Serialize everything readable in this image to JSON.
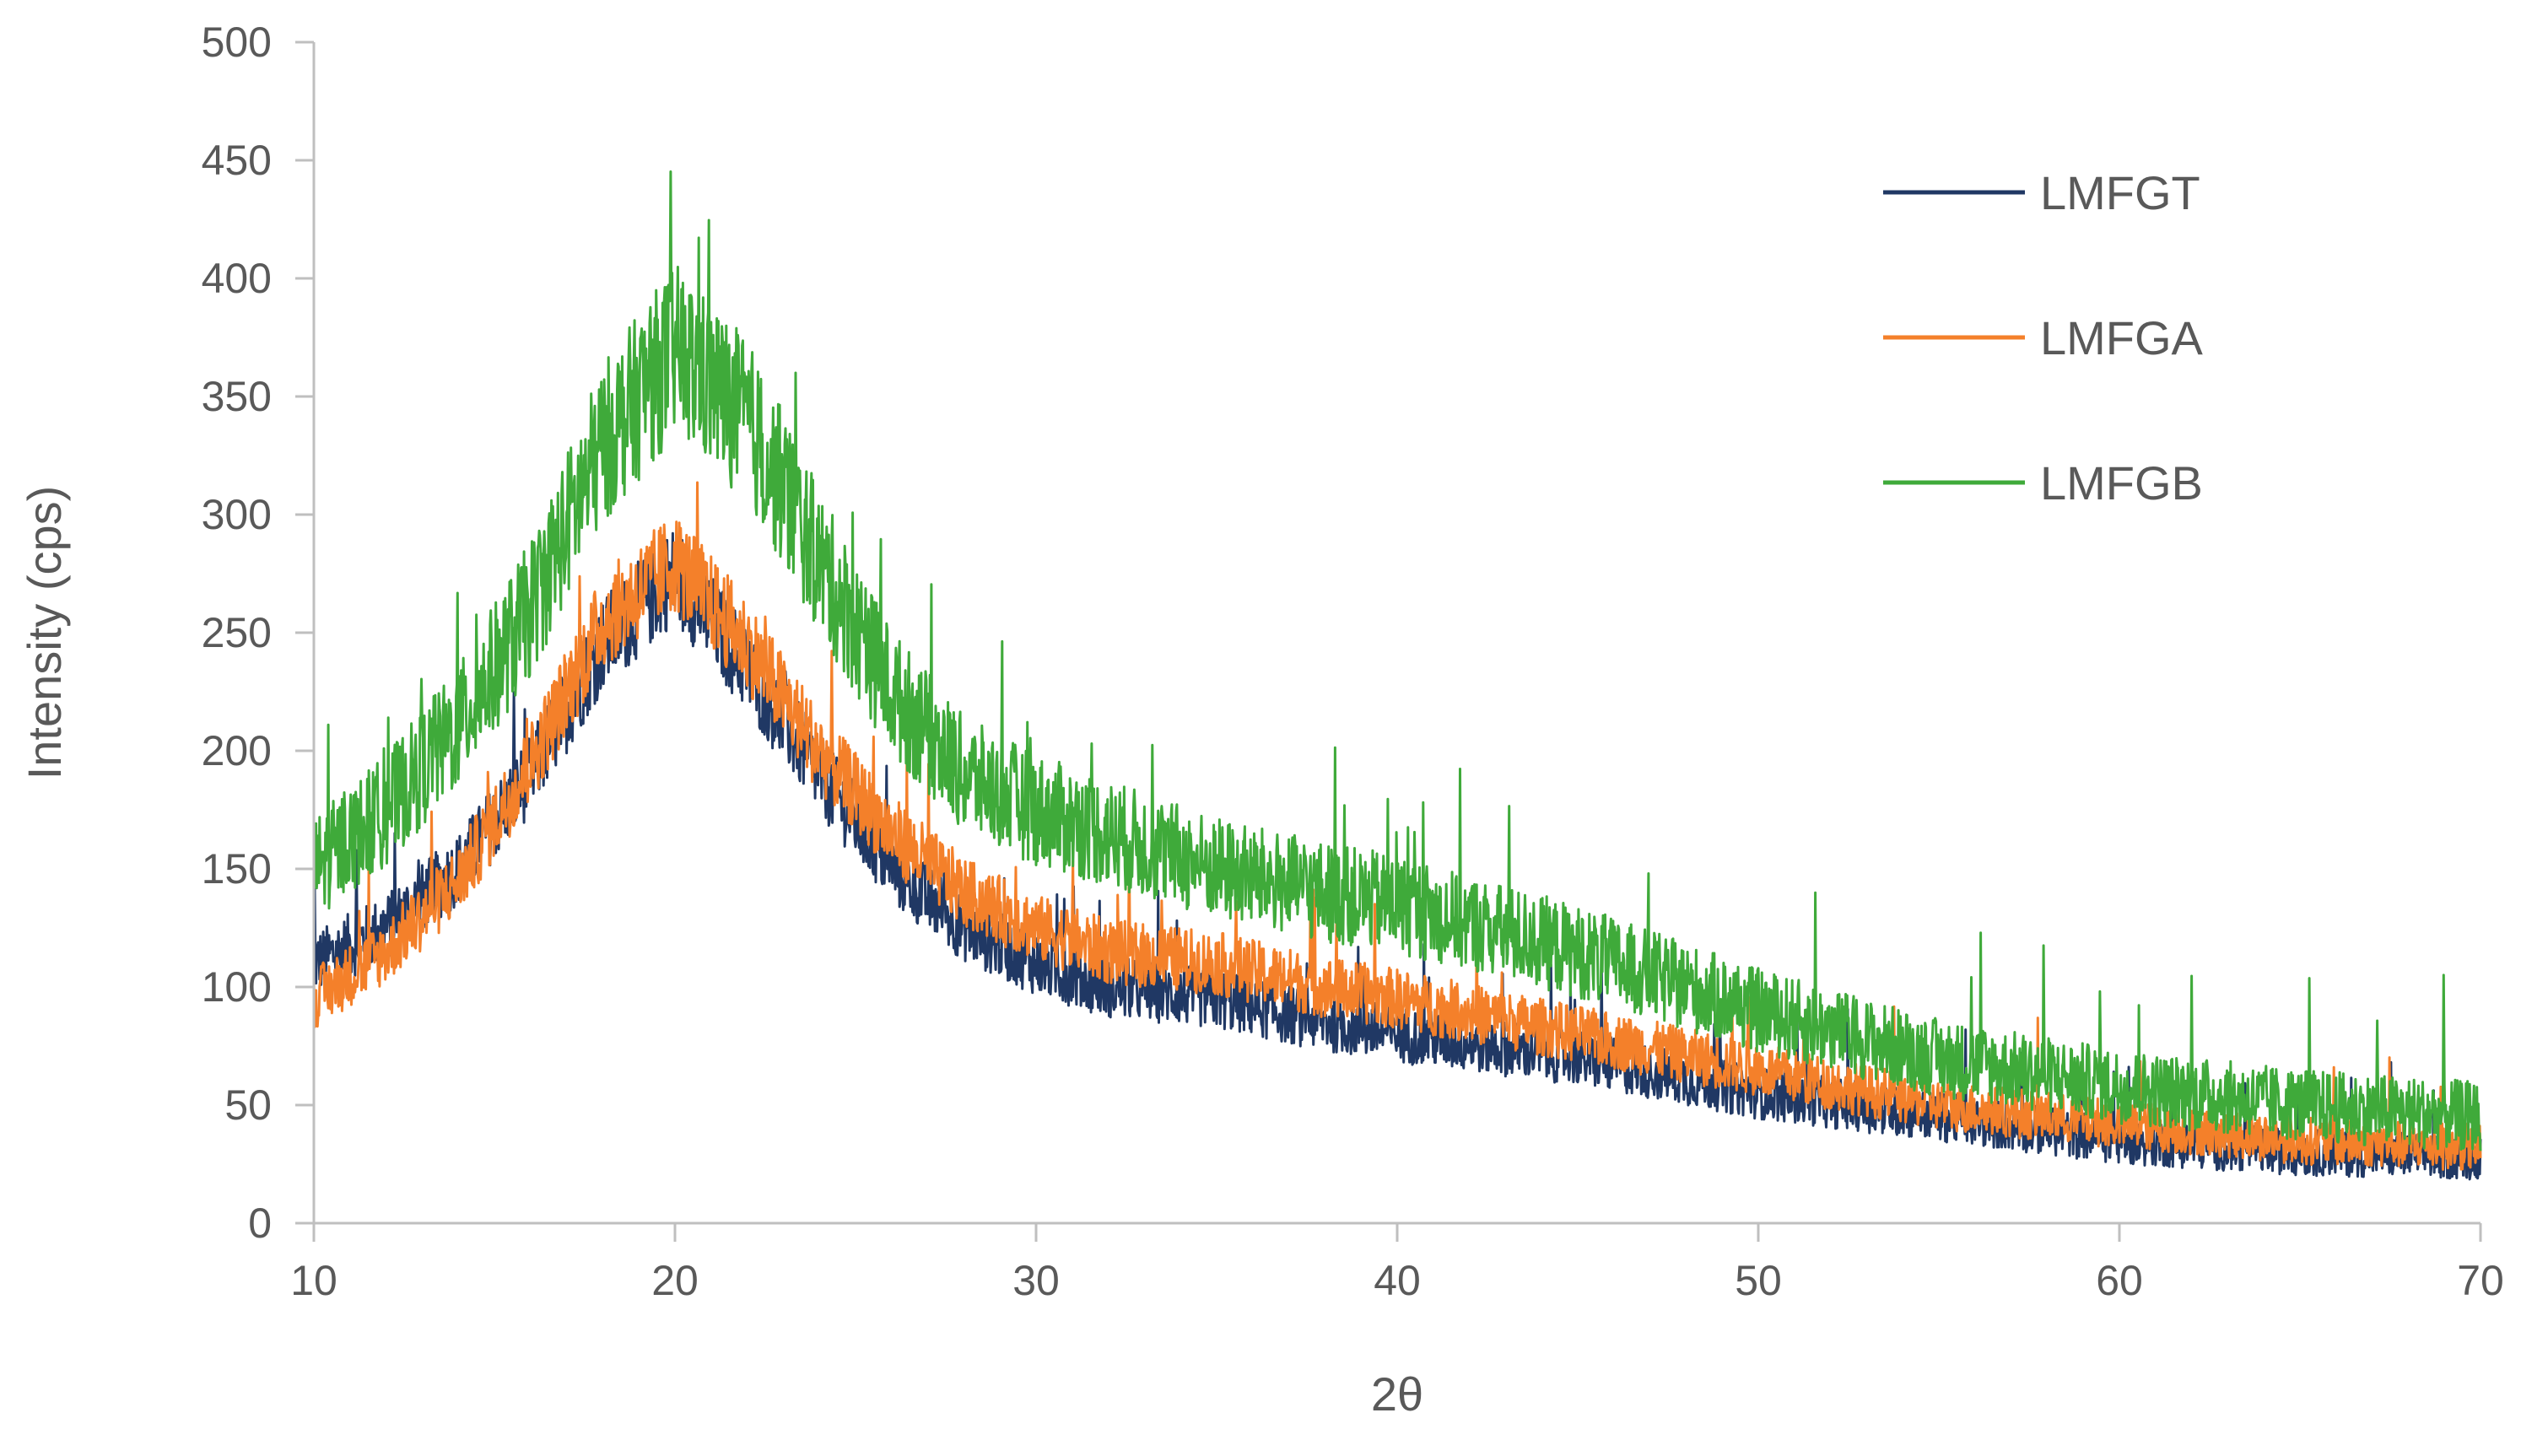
{
  "chart_data": {
    "type": "line",
    "title": "",
    "xlabel": "2θ",
    "ylabel": "Intensity (cps)",
    "xlim": [
      10,
      70
    ],
    "ylim": [
      0,
      500
    ],
    "x_ticks": [
      10,
      20,
      30,
      40,
      50,
      60,
      70
    ],
    "y_ticks": [
      0,
      50,
      100,
      150,
      200,
      250,
      300,
      350,
      400,
      450,
      500
    ],
    "grid": false,
    "legend_position": "top-right",
    "series": [
      {
        "name": "LMFGT",
        "color": "#203864",
        "noise": 14,
        "points": [
          [
            10,
            110
          ],
          [
            12,
            125
          ],
          [
            14,
            150
          ],
          [
            16,
            190
          ],
          [
            18,
            245
          ],
          [
            20,
            275
          ],
          [
            22,
            235
          ],
          [
            24,
            190
          ],
          [
            26,
            150
          ],
          [
            28,
            125
          ],
          [
            30,
            110
          ],
          [
            32,
            100
          ],
          [
            35,
            95
          ],
          [
            38,
            85
          ],
          [
            40,
            80
          ],
          [
            45,
            70
          ],
          [
            50,
            55
          ],
          [
            55,
            45
          ],
          [
            60,
            35
          ],
          [
            65,
            30
          ],
          [
            70,
            28
          ]
        ]
      },
      {
        "name": "LMFGA",
        "color": "#F4802A",
        "noise": 14,
        "points": [
          [
            10,
            95
          ],
          [
            12,
            115
          ],
          [
            14,
            145
          ],
          [
            16,
            195
          ],
          [
            18,
            255
          ],
          [
            20,
            280
          ],
          [
            22,
            245
          ],
          [
            24,
            200
          ],
          [
            26,
            165
          ],
          [
            28,
            140
          ],
          [
            30,
            125
          ],
          [
            32,
            115
          ],
          [
            35,
            110
          ],
          [
            38,
            100
          ],
          [
            40,
            95
          ],
          [
            45,
            80
          ],
          [
            50,
            65
          ],
          [
            55,
            50
          ],
          [
            60,
            42
          ],
          [
            65,
            35
          ],
          [
            70,
            32
          ]
        ]
      },
      {
        "name": "LMFGB",
        "color": "#3FAA3A",
        "noise": 20,
        "points": [
          [
            10,
            150
          ],
          [
            12,
            175
          ],
          [
            14,
            210
          ],
          [
            16,
            260
          ],
          [
            18,
            330
          ],
          [
            20,
            370
          ],
          [
            22,
            340
          ],
          [
            24,
            280
          ],
          [
            26,
            225
          ],
          [
            28,
            190
          ],
          [
            30,
            175
          ],
          [
            32,
            165
          ],
          [
            35,
            150
          ],
          [
            38,
            140
          ],
          [
            40,
            135
          ],
          [
            45,
            115
          ],
          [
            50,
            90
          ],
          [
            55,
            70
          ],
          [
            60,
            58
          ],
          [
            65,
            50
          ],
          [
            70,
            45
          ]
        ]
      }
    ]
  }
}
